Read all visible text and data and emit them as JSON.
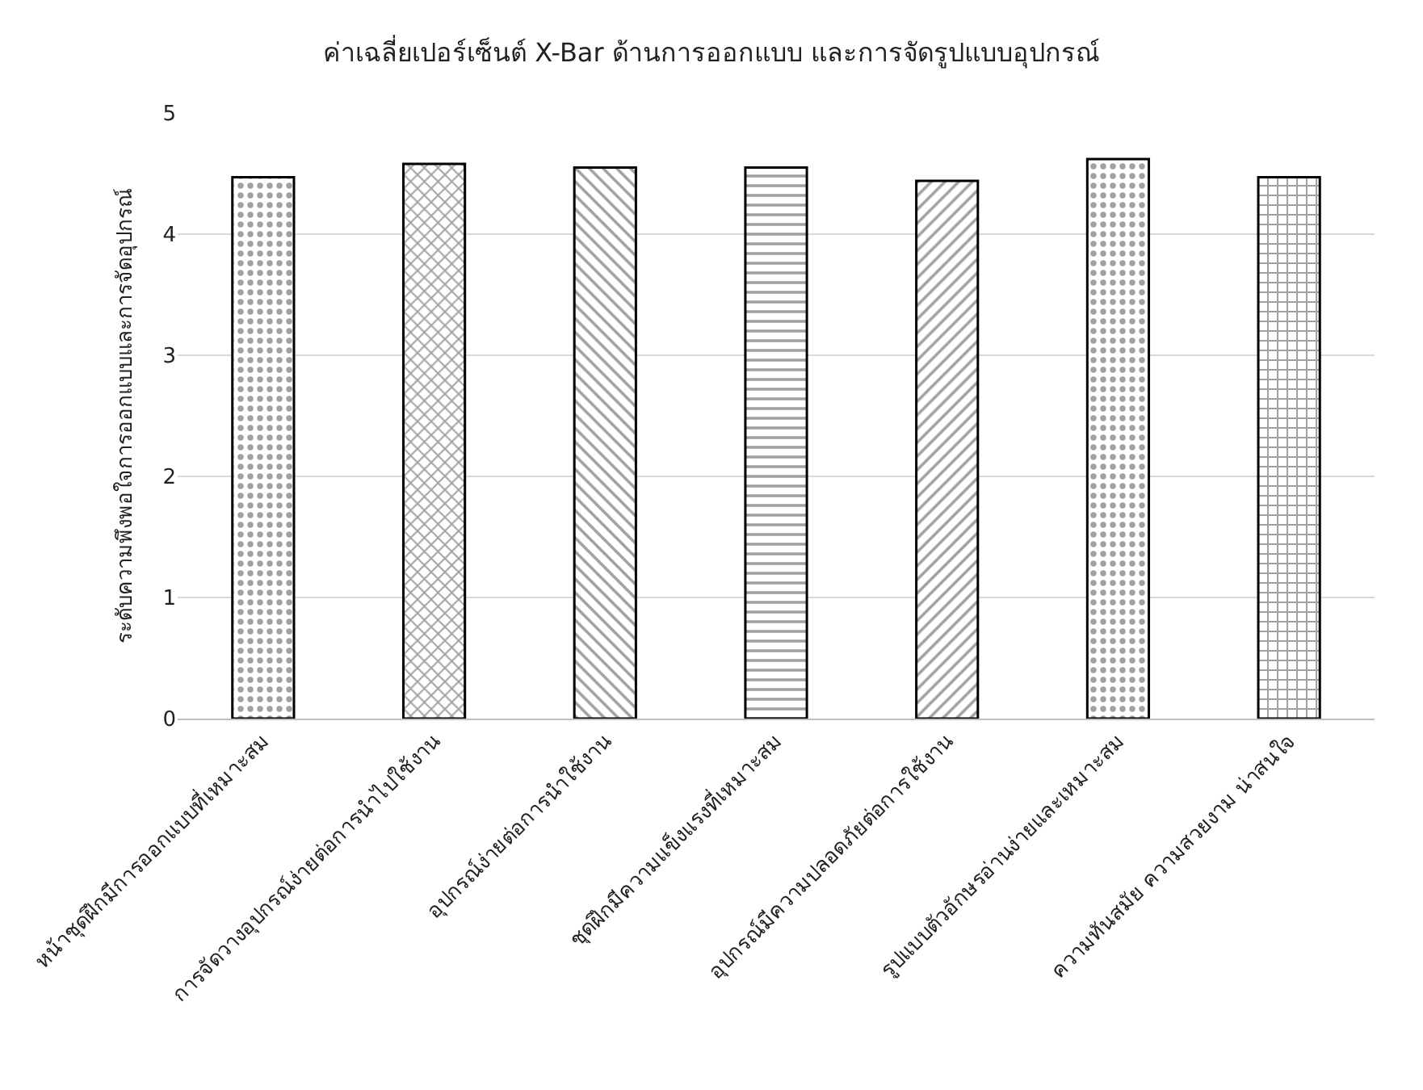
{
  "chart_data": {
    "type": "bar",
    "title": "ค่าเฉลี่ยเปอร์เซ็นต์ X-Bar ด้านการออกแบบ และการจัดรูปแบบอุปกรณ์",
    "ylabel": "ระดับความพึงพอใจการออกแบบและการจัดอุปกรณ์",
    "categories": [
      "หน้าชุดฝึกมีการออกแบบที่เหมาะสม",
      "การจัดวางอุปกรณ์ง่ายต่อการนำไปใช้งาน",
      "อุปกรณ์ง่ายต่อการนำใช้งาน",
      "ชุดฝึกมีความแข็งแรงที่เหมาะสม",
      "อุปกรณ์มีความปลอดภัยต่อการใช้งาน",
      "รูปแบบตัวอักษรอ่านง่ายและเหมาะสม",
      "ความทันสมัย ความสวยงาม น่าสนใจ"
    ],
    "values": [
      4.47,
      4.58,
      4.55,
      4.55,
      4.44,
      4.62,
      4.47
    ],
    "ylim": [
      0,
      5
    ],
    "yticks": [
      0,
      1,
      2,
      3,
      4,
      5
    ],
    "grid": "y"
  }
}
